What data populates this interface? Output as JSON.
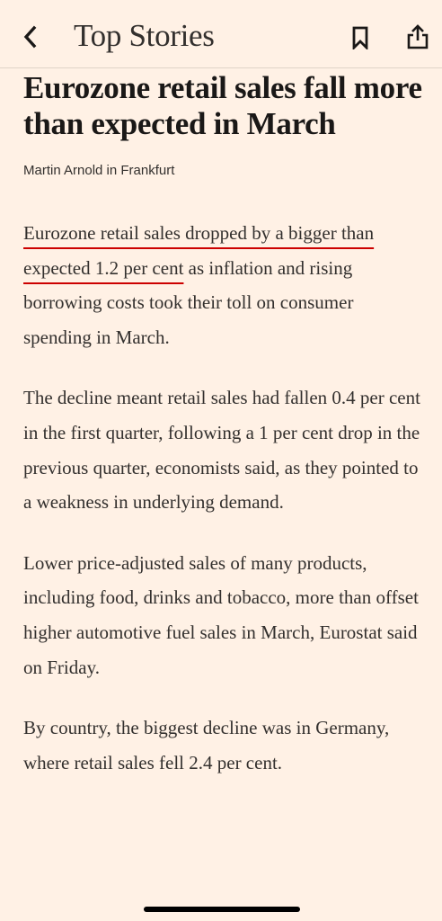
{
  "nav": {
    "back_icon": "chevron-left-icon",
    "title": "Top Stories",
    "bookmark_icon": "bookmark-icon",
    "share_icon": "share-icon"
  },
  "article": {
    "headline": "Eurozone retail sales fall more than expected in March",
    "byline": "Martin Arnold in Frankfurt",
    "paragraphs": [
      {
        "highlighted": "Eurozone retail sales dropped by a bigger than expected 1.2 per cent",
        "rest": " as inflation and rising borrowing costs took their toll on consumer spending in March."
      },
      {
        "text": "The decline meant retail sales had fallen 0.4 per cent in the first quarter, following a 1 per cent drop in the previous quarter, economists said, as they pointed to a weakness in underlying demand."
      },
      {
        "text": "Lower price-adjusted sales of many products, including food, drinks and tobacco, more than offset higher automotive fuel sales in March, Eurostat said on Friday."
      },
      {
        "text": "By country, the biggest decline was in Germany, where retail sales fell 2.4 per cent."
      }
    ]
  },
  "colors": {
    "background": "#FFF1E5",
    "text": "#33302e",
    "highlight_underline": "#cc0000"
  }
}
